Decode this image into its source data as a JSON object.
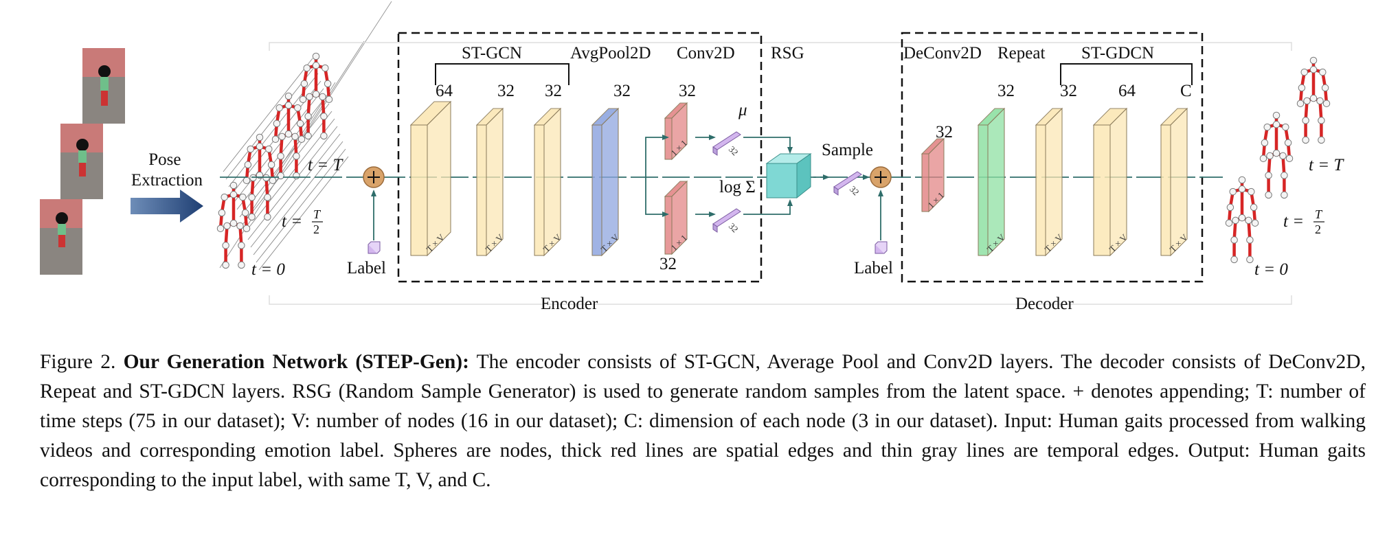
{
  "diagram": {
    "input_label": "Pose\nExtraction",
    "time_labels": {
      "t_T": "t = T",
      "t_half": "t = T/2",
      "t_0": "t = 0"
    },
    "encoder": {
      "name": "Encoder",
      "st_gcn": "ST-GCN",
      "avgpool": "AvgPool2D",
      "conv2d": "Conv2D",
      "channels": [
        "64",
        "32",
        "32",
        "32",
        "32",
        "32"
      ],
      "tv": "T × V",
      "one_by_one": "1 × 1",
      "mu": "μ",
      "log_sigma": "log Σ",
      "latent_dim": "32"
    },
    "rsg": {
      "name": "RSG",
      "sample": "Sample",
      "dim": "32"
    },
    "label": "Label",
    "decoder": {
      "name": "Decoder",
      "deconv": "DeConv2D",
      "repeat": "Repeat",
      "st_gdcn": "ST-GDCN",
      "channels": [
        "32",
        "32",
        "32",
        "64",
        "C"
      ],
      "tv": "T × V",
      "one_by_one": "1 × 1"
    },
    "colors": {
      "st_gcn_layer": "#FBE7B5",
      "avgpool_layer": "#8FA6DF",
      "conv_layer": "#E38787",
      "latent": "#D3B6EE",
      "rsg_cube": "#7FD8D4",
      "deconv_green": "#8FE0A3",
      "append_circle": "#D9A36A",
      "bone": "#D62525",
      "arrow": "#2E6D6A",
      "pose_arrow": "#1F3F73"
    }
  },
  "caption": {
    "figure": "Figure 2. ",
    "title": "Our Generation Network (STEP-Gen):",
    "body": " The encoder consists of ST-GCN, Average Pool and Conv2D layers. The decoder consists of DeConv2D, Repeat and ST-GDCN layers. RSG (Random Sample Generator) is used to generate random samples from the latent space. + denotes appending; T: number of time steps (75 in our dataset); V: number of nodes (16 in our dataset); C: dimension of each node (3 in our dataset). Input: Human gaits processed from walking videos and corresponding emotion label. Spheres are nodes, thick red lines are spatial edges and thin gray lines are temporal edges. Output: Human gaits corresponding to the input label, with same T, V, and C."
  }
}
